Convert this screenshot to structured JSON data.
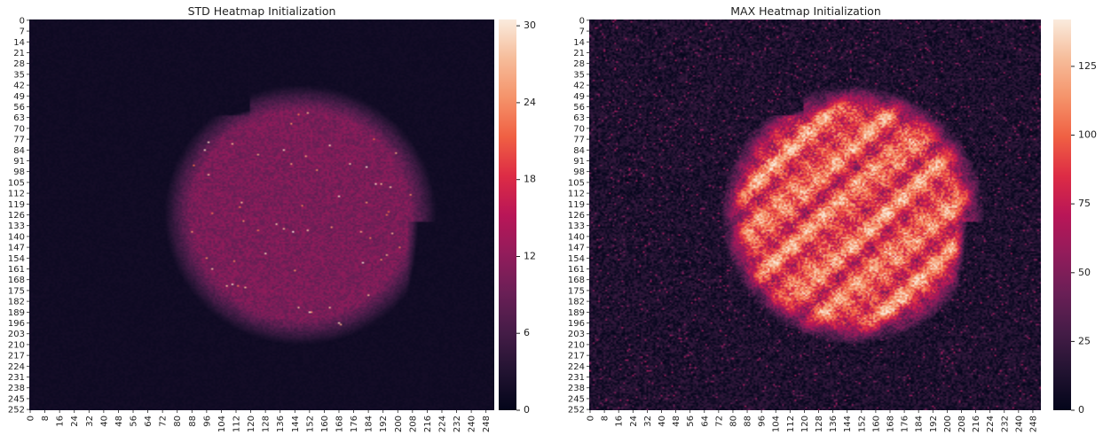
{
  "figure": {
    "panels": [
      {
        "title": "STD Heatmap Initialization",
        "colorbar_ticks": [
          "0",
          "6",
          "12",
          "18",
          "24",
          "30"
        ]
      },
      {
        "title": "MAX Heatmap Initialization",
        "colorbar_ticks": [
          "0",
          "25",
          "50",
          "75",
          "100",
          "125"
        ]
      }
    ]
  },
  "chart_data": [
    {
      "type": "heatmap",
      "title": "STD Heatmap Initialization",
      "colormap": "rocket",
      "grid": false,
      "shape": [
        253,
        253
      ],
      "x_tick_labels": [
        "0",
        "8",
        "16",
        "24",
        "32",
        "40",
        "48",
        "56",
        "64",
        "72",
        "80",
        "88",
        "96",
        "104",
        "112",
        "120",
        "128",
        "136",
        "144",
        "152",
        "160",
        "168",
        "176",
        "184",
        "192",
        "200",
        "208",
        "216",
        "224",
        "232",
        "240",
        "248"
      ],
      "y_tick_labels": [
        "0",
        "7",
        "14",
        "21",
        "28",
        "35",
        "42",
        "49",
        "56",
        "63",
        "70",
        "77",
        "84",
        "91",
        "98",
        "105",
        "112",
        "119",
        "126",
        "133",
        "140",
        "147",
        "154",
        "161",
        "168",
        "175",
        "182",
        "189",
        "196",
        "203",
        "210",
        "217",
        "224",
        "231",
        "238",
        "245",
        "252"
      ],
      "value_range": [
        0,
        30.5
      ],
      "colorbar_ticks": [
        0,
        6,
        12,
        18,
        24,
        30
      ],
      "background_value": 1,
      "region_value": 10,
      "region_extent": {
        "x": [
          80,
          220
        ],
        "y": [
          35,
          203
        ]
      },
      "legend": "colorbar-right"
    },
    {
      "type": "heatmap",
      "title": "MAX Heatmap Initialization",
      "colormap": "rocket",
      "grid": false,
      "shape": [
        253,
        253
      ],
      "x_tick_labels": [
        "0",
        "8",
        "16",
        "24",
        "32",
        "40",
        "48",
        "56",
        "64",
        "72",
        "80",
        "88",
        "96",
        "104",
        "112",
        "120",
        "128",
        "136",
        "144",
        "152",
        "160",
        "168",
        "176",
        "184",
        "192",
        "200",
        "208",
        "216",
        "224",
        "232",
        "240",
        "248"
      ],
      "y_tick_labels": [
        "0",
        "7",
        "14",
        "21",
        "28",
        "35",
        "42",
        "49",
        "56",
        "63",
        "70",
        "77",
        "84",
        "91",
        "98",
        "105",
        "112",
        "119",
        "126",
        "133",
        "140",
        "147",
        "154",
        "161",
        "168",
        "175",
        "182",
        "189",
        "196",
        "203",
        "210",
        "217",
        "224",
        "231",
        "238",
        "245",
        "252"
      ],
      "value_range": [
        0,
        142
      ],
      "colorbar_ticks": [
        0,
        25,
        50,
        75,
        100,
        125
      ],
      "background_value": 15,
      "region_value": 85,
      "region_extent": {
        "x": [
          80,
          220
        ],
        "y": [
          35,
          203
        ]
      },
      "legend": "colorbar-right"
    }
  ]
}
